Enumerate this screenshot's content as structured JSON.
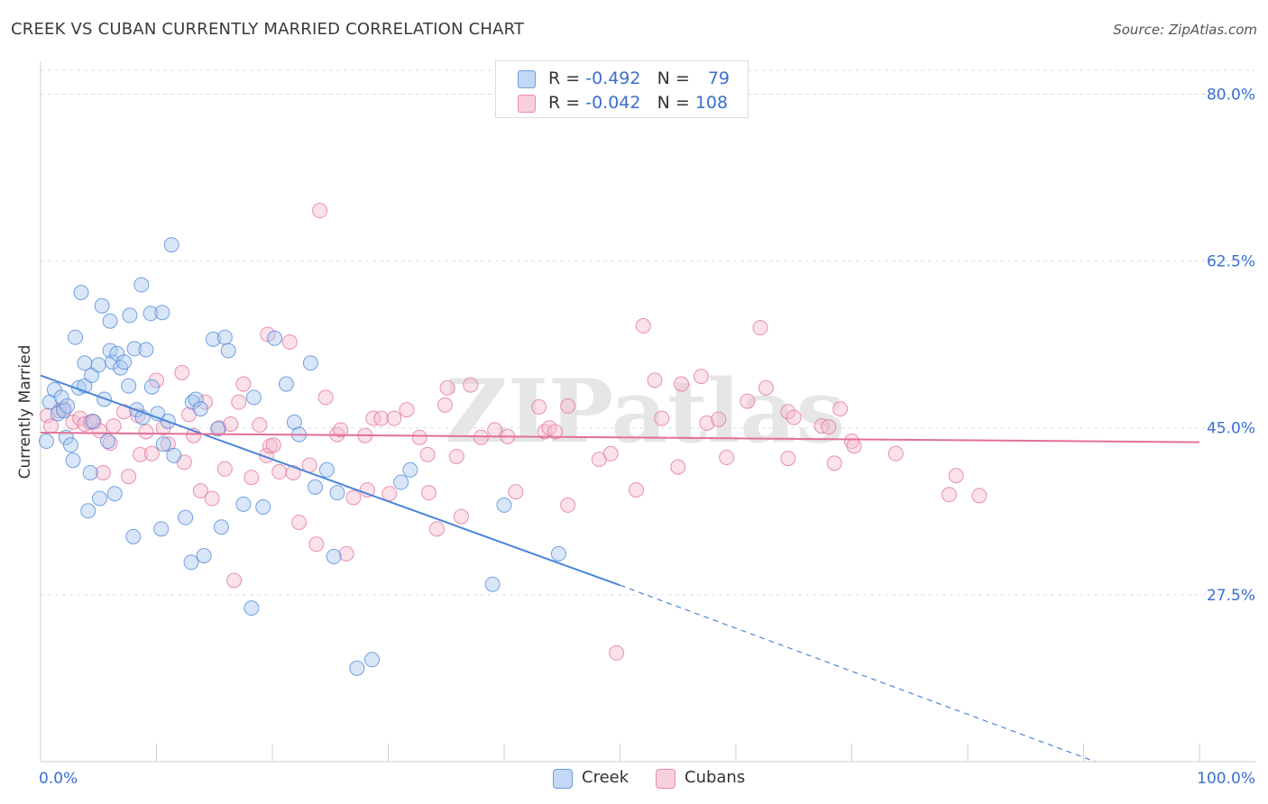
{
  "title": "CREEK VS CUBAN CURRENTLY MARRIED CORRELATION CHART",
  "source": "Source: ZipAtlas.com",
  "watermark": "ZIPatlas",
  "colors": {
    "creek": "#4a86d8",
    "creek_fill": "#aac8f0",
    "cubans": "#e2709a",
    "cubans_fill": "#f4bcd0",
    "axis_text": "#3a6fd0",
    "grid": "#dddddd"
  },
  "legend": {
    "creek": {
      "r_label": "R =",
      "r_value": "-0.492",
      "n_label": "N =",
      "n_value": "79"
    },
    "cubans": {
      "r_label": "R =",
      "r_value": "-0.042",
      "n_label": "N =",
      "n_value": "108"
    }
  },
  "bottom_legend": {
    "creek": "Creek",
    "cubans": "Cubans"
  },
  "chart_data": {
    "type": "scatter",
    "title": "CREEK VS CUBAN CURRENTLY MARRIED CORRELATION CHART",
    "xlabel": "",
    "ylabel": "Currently Married",
    "xlim": [
      0,
      100
    ],
    "ylim": [
      10,
      82.5
    ],
    "x_tick_labels": [
      "0.0%",
      "100.0%"
    ],
    "y_ticks": [
      27.5,
      45.0,
      62.5,
      80.0
    ],
    "y_tick_labels": [
      "27.5%",
      "45.0%",
      "62.5%",
      "80.0%"
    ],
    "grid": true,
    "series": [
      {
        "name": "Creek",
        "r": -0.492,
        "n": 79,
        "trend": {
          "x0": 0,
          "y0": 50.5,
          "x1": 50,
          "y1": 28.5,
          "dash_to_x": 91,
          "dash_to_y": 10
        },
        "points": [
          [
            0.5,
            43.6
          ],
          [
            0.8,
            47.7
          ],
          [
            1.2,
            49.0
          ],
          [
            1.5,
            46.5
          ],
          [
            1.8,
            48.2
          ],
          [
            2.0,
            46.8
          ],
          [
            2.2,
            44.0
          ],
          [
            2.6,
            43.2
          ],
          [
            2.8,
            41.6
          ],
          [
            3.0,
            54.5
          ],
          [
            3.3,
            49.2
          ],
          [
            3.5,
            59.2
          ],
          [
            3.8,
            49.4
          ],
          [
            3.8,
            51.8
          ],
          [
            4.1,
            36.3
          ],
          [
            4.3,
            40.3
          ],
          [
            4.4,
            50.5
          ],
          [
            4.5,
            45.7
          ],
          [
            5.0,
            51.6
          ],
          [
            5.1,
            37.6
          ],
          [
            5.3,
            57.8
          ],
          [
            5.5,
            48.0
          ],
          [
            5.8,
            43.6
          ],
          [
            6.0,
            56.2
          ],
          [
            6.0,
            53.1
          ],
          [
            6.2,
            51.9
          ],
          [
            6.4,
            38.1
          ],
          [
            6.6,
            52.8
          ],
          [
            6.9,
            51.3
          ],
          [
            7.2,
            51.9
          ],
          [
            7.6,
            49.4
          ],
          [
            7.7,
            56.8
          ],
          [
            8.0,
            33.6
          ],
          [
            8.1,
            53.3
          ],
          [
            8.3,
            46.9
          ],
          [
            8.7,
            60.0
          ],
          [
            8.8,
            46.1
          ],
          [
            9.1,
            53.2
          ],
          [
            9.5,
            57.0
          ],
          [
            9.6,
            49.3
          ],
          [
            10.1,
            46.5
          ],
          [
            10.4,
            34.4
          ],
          [
            10.5,
            57.1
          ],
          [
            10.6,
            43.3
          ],
          [
            11.0,
            45.7
          ],
          [
            11.3,
            64.2
          ],
          [
            11.5,
            42.1
          ],
          [
            12.5,
            35.6
          ],
          [
            13.0,
            30.9
          ],
          [
            13.1,
            47.7
          ],
          [
            13.4,
            48.0
          ],
          [
            14.1,
            31.6
          ],
          [
            14.9,
            54.3
          ],
          [
            15.3,
            44.9
          ],
          [
            15.6,
            34.6
          ],
          [
            15.9,
            54.5
          ],
          [
            16.2,
            53.1
          ],
          [
            17.5,
            37.0
          ],
          [
            18.2,
            26.1
          ],
          [
            18.4,
            48.2
          ],
          [
            19.2,
            36.7
          ],
          [
            20.2,
            54.4
          ],
          [
            21.2,
            49.6
          ],
          [
            21.9,
            45.6
          ],
          [
            22.3,
            44.3
          ],
          [
            23.3,
            51.8
          ],
          [
            23.7,
            38.8
          ],
          [
            25.3,
            31.5
          ],
          [
            25.6,
            38.2
          ],
          [
            27.3,
            19.8
          ],
          [
            28.6,
            20.7
          ],
          [
            31.1,
            39.3
          ],
          [
            31.9,
            40.6
          ],
          [
            39.0,
            28.6
          ],
          [
            40.0,
            36.9
          ],
          [
            44.7,
            31.8
          ],
          [
            24.7,
            40.6
          ],
          [
            13.8,
            47.0
          ],
          [
            2.3,
            47.3
          ]
        ]
      },
      {
        "name": "Cubans",
        "r": -0.042,
        "n": 108,
        "trend": {
          "x0": 0,
          "y0": 44.5,
          "x1": 100,
          "y1": 43.5
        },
        "points": [
          [
            0.6,
            46.3
          ],
          [
            0.9,
            45.2
          ],
          [
            1.6,
            46.8
          ],
          [
            2.0,
            47.0
          ],
          [
            2.8,
            45.6
          ],
          [
            3.4,
            46.0
          ],
          [
            3.8,
            45.4
          ],
          [
            4.3,
            45.6
          ],
          [
            4.6,
            45.6
          ],
          [
            5.1,
            44.7
          ],
          [
            5.4,
            40.3
          ],
          [
            6.0,
            43.4
          ],
          [
            6.3,
            45.2
          ],
          [
            7.2,
            46.7
          ],
          [
            7.6,
            39.9
          ],
          [
            8.4,
            46.3
          ],
          [
            8.6,
            42.2
          ],
          [
            9.1,
            44.6
          ],
          [
            9.6,
            42.3
          ],
          [
            10.0,
            50.0
          ],
          [
            10.6,
            45.0
          ],
          [
            11.0,
            43.3
          ],
          [
            12.2,
            50.8
          ],
          [
            12.4,
            41.4
          ],
          [
            12.8,
            46.4
          ],
          [
            13.2,
            44.2
          ],
          [
            13.8,
            38.4
          ],
          [
            14.2,
            47.7
          ],
          [
            14.8,
            37.6
          ],
          [
            15.4,
            45.0
          ],
          [
            15.9,
            40.7
          ],
          [
            16.4,
            45.4
          ],
          [
            16.7,
            29.0
          ],
          [
            17.1,
            47.7
          ],
          [
            17.5,
            49.6
          ],
          [
            18.2,
            39.8
          ],
          [
            18.9,
            45.3
          ],
          [
            19.5,
            42.1
          ],
          [
            19.6,
            54.8
          ],
          [
            19.8,
            43.1
          ],
          [
            20.1,
            43.2
          ],
          [
            20.6,
            40.4
          ],
          [
            21.5,
            54.0
          ],
          [
            21.8,
            40.3
          ],
          [
            22.3,
            35.1
          ],
          [
            23.2,
            41.1
          ],
          [
            23.8,
            32.8
          ],
          [
            24.1,
            67.8
          ],
          [
            24.6,
            48.2
          ],
          [
            25.6,
            44.3
          ],
          [
            25.9,
            44.8
          ],
          [
            26.4,
            31.8
          ],
          [
            27.0,
            37.7
          ],
          [
            28.0,
            44.2
          ],
          [
            28.2,
            38.5
          ],
          [
            28.7,
            46.0
          ],
          [
            29.4,
            46.0
          ],
          [
            30.1,
            38.1
          ],
          [
            30.5,
            46.0
          ],
          [
            31.6,
            46.9
          ],
          [
            32.7,
            44.0
          ],
          [
            33.4,
            42.2
          ],
          [
            33.5,
            38.2
          ],
          [
            34.2,
            34.4
          ],
          [
            34.9,
            47.4
          ],
          [
            35.1,
            49.2
          ],
          [
            35.9,
            42.0
          ],
          [
            36.3,
            35.7
          ],
          [
            37.1,
            49.5
          ],
          [
            38.0,
            44.0
          ],
          [
            39.2,
            44.8
          ],
          [
            40.3,
            44.1
          ],
          [
            41.0,
            38.3
          ],
          [
            43.0,
            47.2
          ],
          [
            43.5,
            44.6
          ],
          [
            43.9,
            45.0
          ],
          [
            44.4,
            44.6
          ],
          [
            45.5,
            47.3
          ],
          [
            45.5,
            36.9
          ],
          [
            48.2,
            41.7
          ],
          [
            49.2,
            42.3
          ],
          [
            49.7,
            21.4
          ],
          [
            51.4,
            38.5
          ],
          [
            52.0,
            55.7
          ],
          [
            53.0,
            50.0
          ],
          [
            53.6,
            46.0
          ],
          [
            55.0,
            40.9
          ],
          [
            55.3,
            49.6
          ],
          [
            57.0,
            50.4
          ],
          [
            57.5,
            45.5
          ],
          [
            59.2,
            41.9
          ],
          [
            61.0,
            47.8
          ],
          [
            62.1,
            55.5
          ],
          [
            62.6,
            49.2
          ],
          [
            64.5,
            46.7
          ],
          [
            64.5,
            41.8
          ],
          [
            65.0,
            46.1
          ],
          [
            67.4,
            45.2
          ],
          [
            68.0,
            45.1
          ],
          [
            68.5,
            41.3
          ],
          [
            69.0,
            47.0
          ],
          [
            70.0,
            43.6
          ],
          [
            70.2,
            43.1
          ],
          [
            73.8,
            42.3
          ],
          [
            78.4,
            38.0
          ],
          [
            79.0,
            40.0
          ],
          [
            81.0,
            37.9
          ],
          [
            58.5,
            45.9
          ]
        ]
      }
    ]
  }
}
